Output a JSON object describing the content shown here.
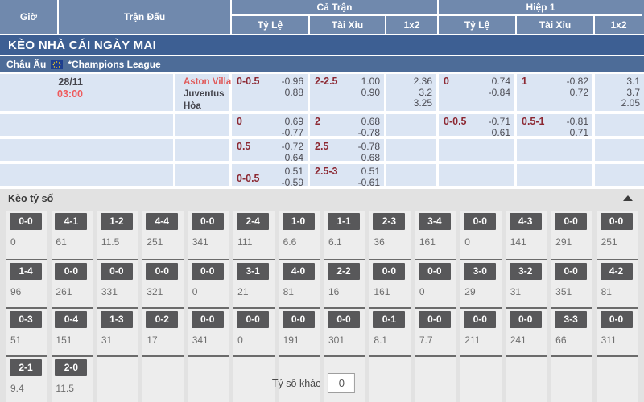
{
  "colors": {
    "header_bg": "#7089ad",
    "banner_bg": "#3d5f93",
    "league_bg": "#4d6c98",
    "row_bg": "#dbe5f3",
    "handicap_label": "#8c2832",
    "odds_value": "#4c4c54",
    "home_team": "#e05a5a",
    "time_red": "#ef5a5c",
    "score_box": "#58585a",
    "score_section_bg": "#e2e2e2"
  },
  "header": {
    "time": "Giờ",
    "match": "Trận Đấu",
    "full_time": "Cả Trận",
    "first_half": "Hiệp 1",
    "handicap": "Tỷ Lệ",
    "over_under": "Tài Xỉu",
    "one_x_two": "1x2"
  },
  "banner": {
    "title": "KÈO NHÀ CÁI NGÀY MAI"
  },
  "league": {
    "region": "Châu Âu",
    "flag": "eu-flag",
    "name": "*Champions League"
  },
  "match": {
    "date": "28/11",
    "time": "03:00",
    "home": "Aston Villa",
    "away": "Juventus",
    "draw": "Hòa"
  },
  "odds_rows": [
    {
      "ft_hdp": {
        "label": "0-0.5",
        "v1": "-0.96",
        "v2": "0.88"
      },
      "ft_ou": {
        "label": "2-2.5",
        "v1": "1.00",
        "v2": "0.90"
      },
      "ft_1x2": [
        "2.36",
        "3.2",
        "3.25"
      ],
      "h1_hdp": {
        "label": "0",
        "v1": "0.74",
        "v2": "-0.84"
      },
      "h1_ou": {
        "label": "1",
        "v1": "-0.82",
        "v2": "0.72"
      },
      "h1_1x2": [
        "3.1",
        "3.7",
        "2.05"
      ]
    },
    {
      "ft_hdp": {
        "label": "0",
        "v1": "0.69",
        "v2": "-0.77"
      },
      "ft_ou": {
        "label": "2",
        "v1": "0.68",
        "v2": "-0.78"
      },
      "ft_1x2": [],
      "h1_hdp": {
        "label": "0-0.5",
        "v1": "-0.71",
        "v2": "0.61"
      },
      "h1_ou": {
        "label": "0.5-1",
        "v1": "-0.81",
        "v2": "0.71"
      },
      "h1_1x2": []
    },
    {
      "ft_hdp": {
        "label": "0.5",
        "v1": "-0.72",
        "v2": "0.64"
      },
      "ft_ou": {
        "label": "2.5",
        "v1": "-0.78",
        "v2": "0.68"
      },
      "ft_1x2": [],
      "h1_hdp": null,
      "h1_ou": null,
      "h1_1x2": []
    },
    {
      "ft_hdp": {
        "label": "0-0.5",
        "v1": "0.51",
        "v2": "-0.59",
        "label_pos": "bottom"
      },
      "ft_ou": {
        "label": "2.5-3",
        "v1": "0.51",
        "v2": "-0.61"
      },
      "ft_1x2": [],
      "h1_hdp": null,
      "h1_ou": null,
      "h1_1x2": []
    }
  ],
  "score_section": {
    "title": "Kèo tỷ số",
    "collapse_icon": "triangle-up",
    "other_label": "Tỷ số khác",
    "other_value": "0",
    "rows": [
      [
        {
          "score": "0-0",
          "odds": "0"
        },
        {
          "score": "4-1",
          "odds": "61"
        },
        {
          "score": "1-2",
          "odds": "11.5"
        },
        {
          "score": "4-4",
          "odds": "251"
        },
        {
          "score": "0-0",
          "odds": "341"
        },
        {
          "score": "2-4",
          "odds": "111"
        },
        {
          "score": "1-0",
          "odds": "6.6"
        },
        {
          "score": "1-1",
          "odds": "6.1"
        },
        {
          "score": "2-3",
          "odds": "36"
        },
        {
          "score": "3-4",
          "odds": "161"
        },
        {
          "score": "0-0",
          "odds": "0"
        },
        {
          "score": "4-3",
          "odds": "141"
        },
        {
          "score": "0-0",
          "odds": "291"
        },
        {
          "score": "0-0",
          "odds": "251"
        }
      ],
      [
        {
          "score": "1-4",
          "odds": "96"
        },
        {
          "score": "0-0",
          "odds": "261"
        },
        {
          "score": "0-0",
          "odds": "331"
        },
        {
          "score": "0-0",
          "odds": "321"
        },
        {
          "score": "0-0",
          "odds": "0"
        },
        {
          "score": "3-1",
          "odds": "21"
        },
        {
          "score": "4-0",
          "odds": "81"
        },
        {
          "score": "2-2",
          "odds": "16"
        },
        {
          "score": "0-0",
          "odds": "161"
        },
        {
          "score": "0-0",
          "odds": "0"
        },
        {
          "score": "3-0",
          "odds": "29"
        },
        {
          "score": "3-2",
          "odds": "31"
        },
        {
          "score": "0-0",
          "odds": "351"
        },
        {
          "score": "4-2",
          "odds": "81"
        }
      ],
      [
        {
          "score": "0-3",
          "odds": "51"
        },
        {
          "score": "0-4",
          "odds": "151"
        },
        {
          "score": "1-3",
          "odds": "31"
        },
        {
          "score": "0-2",
          "odds": "17"
        },
        {
          "score": "0-0",
          "odds": "341"
        },
        {
          "score": "0-0",
          "odds": "0"
        },
        {
          "score": "0-0",
          "odds": "191"
        },
        {
          "score": "0-0",
          "odds": "301"
        },
        {
          "score": "0-1",
          "odds": "8.1"
        },
        {
          "score": "0-0",
          "odds": "7.7"
        },
        {
          "score": "0-0",
          "odds": "211"
        },
        {
          "score": "0-0",
          "odds": "241"
        },
        {
          "score": "3-3",
          "odds": "66"
        },
        {
          "score": "0-0",
          "odds": "311"
        }
      ],
      [
        {
          "score": "2-1",
          "odds": "9.4"
        },
        {
          "score": "2-0",
          "odds": "11.5"
        }
      ]
    ]
  }
}
